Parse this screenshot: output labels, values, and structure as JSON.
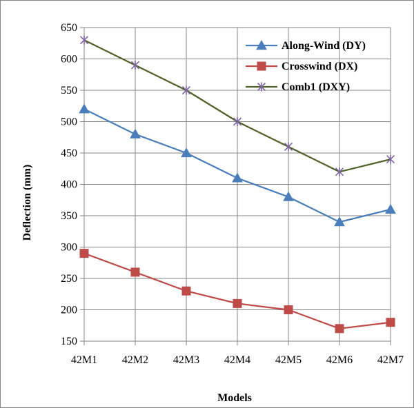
{
  "chart_data": {
    "type": "line",
    "title": "",
    "xlabel": "Models",
    "ylabel": "Deflection (mm)",
    "categories": [
      "42M1",
      "42M2",
      "42M3",
      "42M4",
      "42M5",
      "42M6",
      "42M7"
    ],
    "ylim": [
      150,
      650
    ],
    "yticks": [
      150,
      200,
      250,
      300,
      350,
      400,
      450,
      500,
      550,
      600,
      650
    ],
    "grid": true,
    "legend_position": "top-right",
    "series": [
      {
        "name": "Along-Wind (DY)",
        "color": "#4a7ebb",
        "marker": "triangle",
        "values": [
          520,
          480,
          450,
          410,
          380,
          340,
          360
        ]
      },
      {
        "name": "Crosswind (DX)",
        "color": "#be4b48",
        "marker": "square",
        "values": [
          290,
          260,
          230,
          210,
          200,
          170,
          180
        ]
      },
      {
        "name": "Comb1 (DXY)",
        "color": "#4f6228",
        "marker_color": "#8064a2",
        "marker": "star",
        "values": [
          630,
          590,
          550,
          500,
          460,
          420,
          440
        ]
      }
    ]
  }
}
